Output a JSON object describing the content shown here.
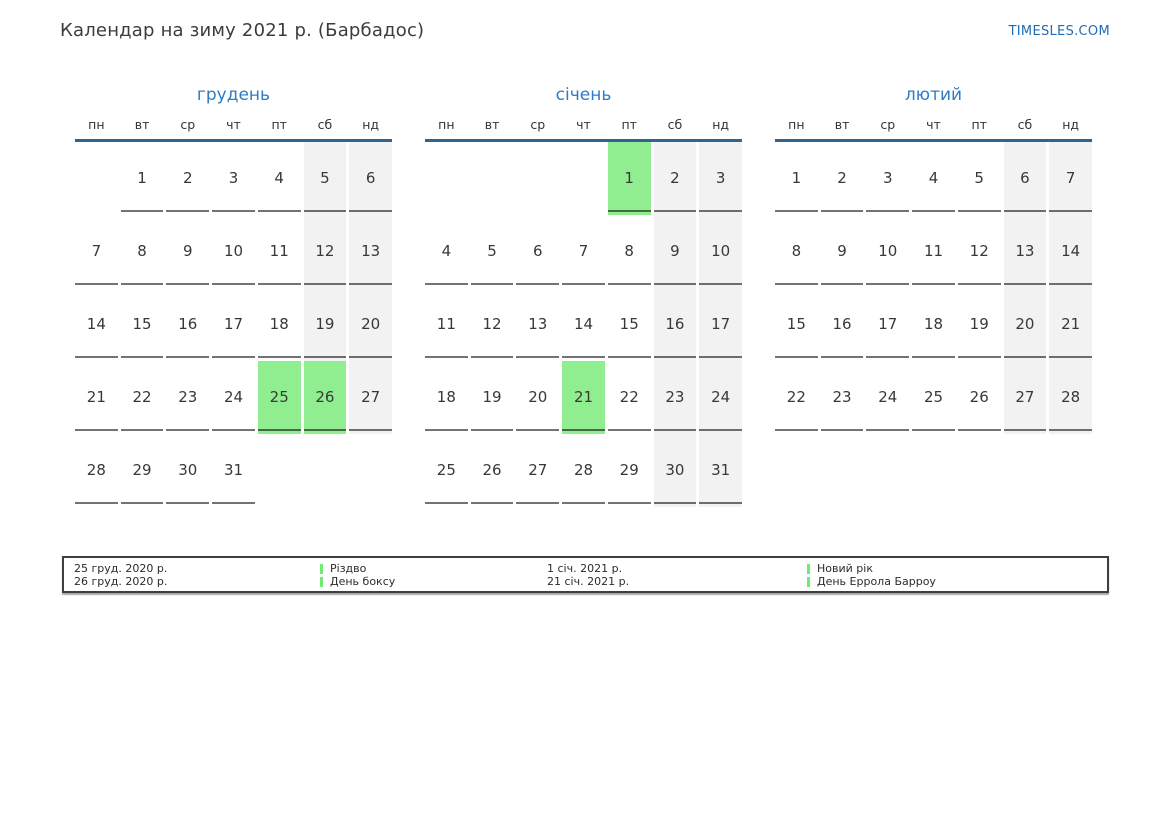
{
  "page": {
    "title": "Календар на зиму 2021 р. (Барбадос)",
    "site_link": "TIMESLES.COM"
  },
  "calendar": {
    "weekdays": [
      "пн",
      "вт",
      "ср",
      "чт",
      "пт",
      "сб",
      "нд"
    ],
    "months": [
      {
        "name": "грудень",
        "weeks": [
          [
            null,
            1,
            2,
            3,
            4,
            5,
            6
          ],
          [
            7,
            8,
            9,
            10,
            11,
            12,
            13
          ],
          [
            14,
            15,
            16,
            17,
            18,
            19,
            20
          ],
          [
            21,
            22,
            23,
            24,
            25,
            26,
            27
          ],
          [
            28,
            29,
            30,
            31,
            null,
            null,
            null
          ]
        ],
        "holidays": [
          25,
          26
        ]
      },
      {
        "name": "січень",
        "weeks": [
          [
            null,
            null,
            null,
            null,
            1,
            2,
            3
          ],
          [
            4,
            5,
            6,
            7,
            8,
            9,
            10
          ],
          [
            11,
            12,
            13,
            14,
            15,
            16,
            17
          ],
          [
            18,
            19,
            20,
            21,
            22,
            23,
            24
          ],
          [
            25,
            26,
            27,
            28,
            29,
            30,
            31
          ]
        ],
        "holidays": [
          1,
          21
        ]
      },
      {
        "name": "лютий",
        "weeks": [
          [
            1,
            2,
            3,
            4,
            5,
            6,
            7
          ],
          [
            8,
            9,
            10,
            11,
            12,
            13,
            14
          ],
          [
            15,
            16,
            17,
            18,
            19,
            20,
            21
          ],
          [
            22,
            23,
            24,
            25,
            26,
            27,
            28
          ]
        ],
        "holidays": []
      }
    ]
  },
  "legend": [
    {
      "date": "25 груд. 2020 р.",
      "label": "Різдво"
    },
    {
      "date": "26 груд. 2020 р.",
      "label": "День боксу"
    },
    {
      "date": "1 січ. 2021 р.",
      "label": "Новий рік"
    },
    {
      "date": "21 січ. 2021 р.",
      "label": "День Еррола Барроу"
    }
  ],
  "colors": {
    "month_title_blue": "#2e7cc4",
    "header_line_blue": "#2f6391",
    "link_blue": "#1e6cb5",
    "holiday_green": "#90ee90",
    "weekend_gray": "#f2f2f2"
  }
}
